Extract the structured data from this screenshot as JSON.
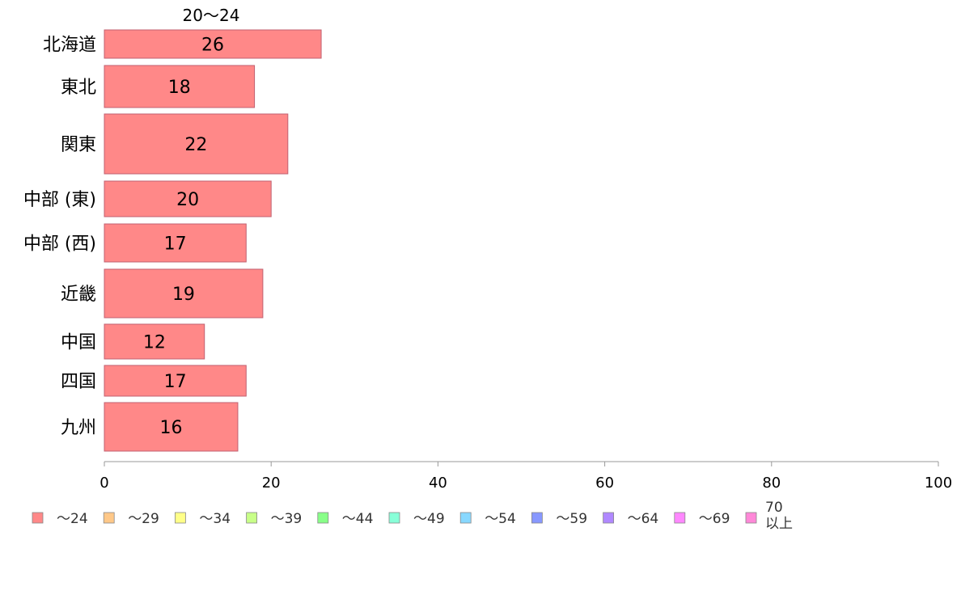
{
  "chart_data": {
    "type": "bar",
    "orientation": "horizontal",
    "title": "",
    "series_title": "20〜24",
    "categories": [
      "北海道",
      "東北",
      "関東",
      "中部 (東)",
      "中部 (西)",
      "近畿",
      "中国",
      "四国",
      "九州"
    ],
    "series": [
      {
        "name": "〜24",
        "values": [
          26,
          18,
          22,
          20,
          17,
          19,
          12,
          17,
          16
        ],
        "color": "#ff8888"
      }
    ],
    "xlim": [
      0,
      100
    ],
    "xticks": [
      0,
      20,
      40,
      60,
      80,
      100
    ],
    "xlabel": "",
    "ylabel": "",
    "grid": false,
    "legend_position": "bottom",
    "legend": [
      {
        "label": "〜24",
        "color": "#ff8888"
      },
      {
        "label": "〜29",
        "color": "#ffc888"
      },
      {
        "label": "〜34",
        "color": "#ffff88"
      },
      {
        "label": "〜39",
        "color": "#c8ff88"
      },
      {
        "label": "〜44",
        "color": "#88ff88"
      },
      {
        "label": "〜49",
        "color": "#88ffd8"
      },
      {
        "label": "〜54",
        "color": "#88d8ff"
      },
      {
        "label": "〜59",
        "color": "#8898ff"
      },
      {
        "label": "〜64",
        "color": "#b088ff"
      },
      {
        "label": "〜69",
        "color": "#ff88ff"
      },
      {
        "label": "70\n以上",
        "color": "#ff88d8"
      }
    ]
  }
}
